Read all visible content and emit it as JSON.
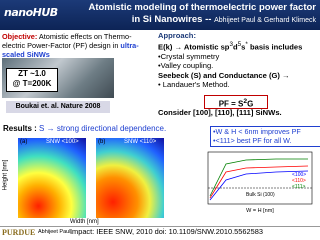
{
  "header": {
    "logo": "nanoHUB",
    "title": "Atomistic modeling of thermoelectric power factor",
    "title_line2": "in Si Nanowires --",
    "authors": "Abhijeet Paul & Gerhard Klimeck"
  },
  "objective": {
    "label": "Objective:",
    "text": "Atomistic effects on Thermo-electric Power-Factor (PF) design in",
    "highlight": "ultra-scaled SiNWs",
    "zt": "ZT ~1.0",
    "zt_temp": "@ T=200K",
    "citation": "Boukai et. al. Nature 2008"
  },
  "approach": {
    "label": "Approach:",
    "ek": "E(k) → Atomistic sp",
    "sup1": "3",
    "d": "d",
    "sup2": "5",
    "s": "s",
    "sup3": "*",
    "basis": " basis includes",
    "bullet1": "•Crystal symmetry",
    "bullet2": "•Valley coupling.",
    "seebeck": "Seebeck (S) and Conductance (G) →",
    "bullet3": "• Landauer's Method.",
    "pf": "PF = S",
    "pf_sup": "2",
    "pf_g": "G",
    "consider": "Consider [100], [110], [111] SiNWs."
  },
  "results": {
    "label": "Results :",
    "text": "S → strong directional dependence.",
    "panel_a": "(a)",
    "panel_b": "(b)",
    "map_a": "SNW <100>",
    "map_b": "SNW <110>",
    "y_label": "Height [nm]",
    "x_label": "Width [nm]",
    "note1": "•W & H < 6nm improves PF",
    "note2": "•<111> best PF for all W.",
    "legend": [
      "<100>",
      "<110>",
      "<111>"
    ],
    "bulk": "Bulk Si (100)",
    "plot_x_label": "W = H [nm]"
  },
  "footer": {
    "logo": "PURDUE",
    "name": "Abhijeet Paul,",
    "impact": "Impact: IEEE SNW, 2010 doi: 10.1109/SNW.2010.5562583"
  }
}
